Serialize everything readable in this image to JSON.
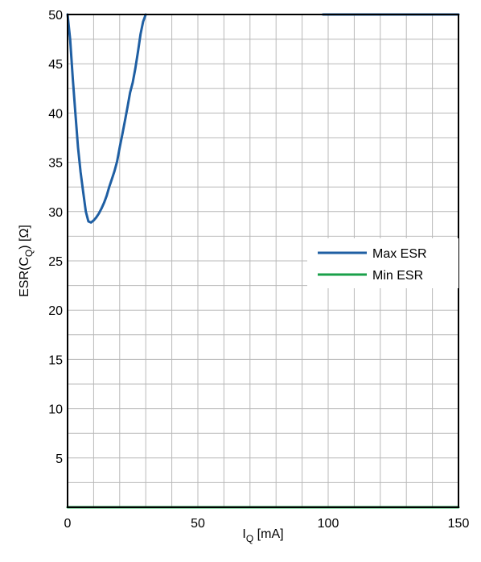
{
  "chart_data": {
    "type": "line",
    "title": "",
    "xlabel": {
      "main": "I",
      "sub": "Q",
      "tail": " [mA]"
    },
    "ylabel": {
      "main": "ESR(C",
      "sub": "Q",
      "tail": ") [Ω]"
    },
    "xlim": [
      0,
      150
    ],
    "ylim": [
      0,
      50
    ],
    "x_ticks": [
      0,
      50,
      100,
      150
    ],
    "x_tick_labels": [
      "0",
      "50",
      "100",
      "150"
    ],
    "y_ticks": [
      5,
      10,
      15,
      20,
      25,
      30,
      35,
      40,
      45,
      50
    ],
    "y_tick_labels": [
      "5",
      "10",
      "15",
      "20",
      "25",
      "30",
      "35",
      "40",
      "45",
      "50"
    ],
    "x_minor_grid_step": 10,
    "y_minor_grid_step": 2.5,
    "grid": true,
    "legend_position": "right-middle",
    "series": [
      {
        "name": "Max ESR",
        "color": "#1f5fa3",
        "segments": [
          [
            [
              0,
              50
            ],
            [
              1,
              47.5
            ],
            [
              2,
              43.5
            ],
            [
              3,
              40
            ],
            [
              4,
              36.5
            ],
            [
              5,
              34
            ],
            [
              6,
              32
            ],
            [
              7,
              30
            ],
            [
              8,
              29
            ],
            [
              9,
              28.9
            ],
            [
              10,
              29.1
            ],
            [
              11,
              29.4
            ],
            [
              12,
              29.8
            ],
            [
              13,
              30.3
            ],
            [
              14,
              30.9
            ],
            [
              15,
              31.6
            ],
            [
              16,
              32.5
            ],
            [
              17,
              33.3
            ],
            [
              18,
              34.1
            ],
            [
              19,
              35.1
            ],
            [
              20,
              36.5
            ],
            [
              21,
              37.8
            ],
            [
              22,
              39.2
            ],
            [
              23,
              40.6
            ],
            [
              24,
              42.1
            ],
            [
              25,
              43.1
            ],
            [
              26,
              44.5
            ],
            [
              27,
              46.2
            ],
            [
              28,
              48
            ],
            [
              29,
              49.3
            ],
            [
              30,
              50
            ]
          ],
          [
            [
              98,
              50
            ],
            [
              150,
              50
            ]
          ]
        ]
      },
      {
        "name": "Min ESR",
        "color": "#1aa04a",
        "segments": [
          [
            [
              0,
              0
            ],
            [
              150,
              0
            ]
          ]
        ]
      }
    ]
  }
}
